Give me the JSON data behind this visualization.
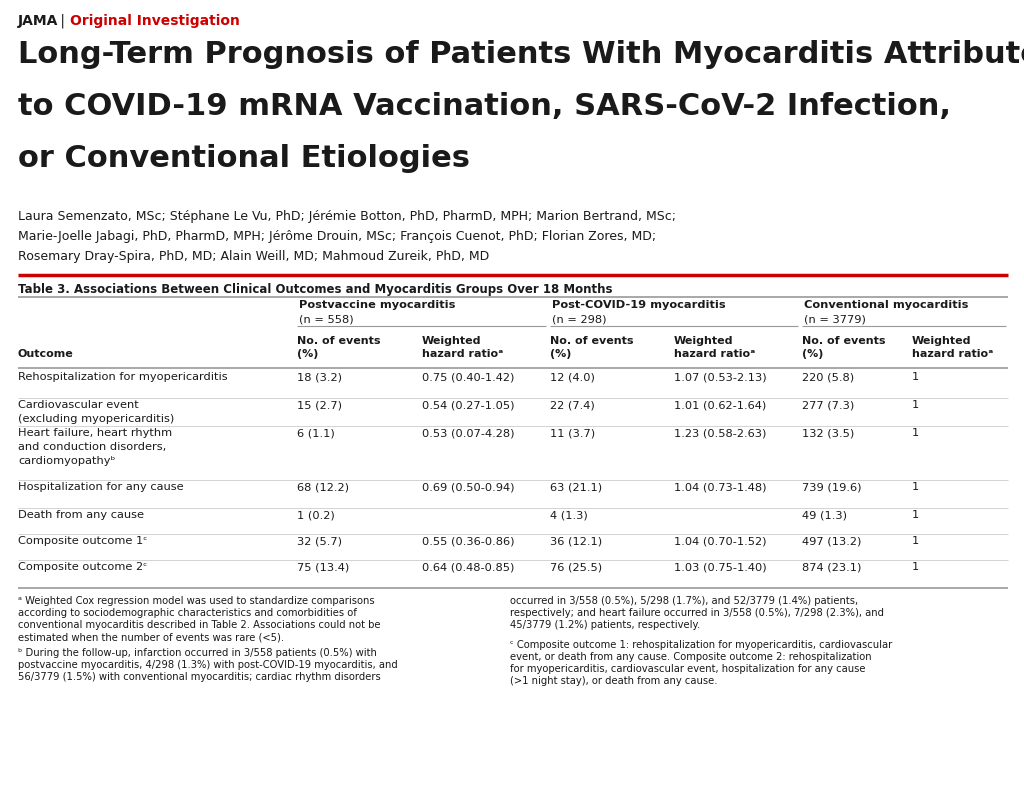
{
  "jama_label": "JAMA",
  "separator": " | ",
  "article_type": "Original Investigation",
  "title_lines": [
    "Long-Term Prognosis of Patients With Myocarditis Attributed",
    "to COVID-19 mRNA Vaccination, SARS-CoV-2 Infection,",
    "or Conventional Etiologies"
  ],
  "author_lines": [
    "Laura Semenzato, MSc; Stéphane Le Vu, PhD; Jérémie Botton, PhD, PharmD, MPH; Marion Bertrand, MSc;",
    "Marie-Joelle Jabagi, PhD, PharmD, MPH; Jérôme Drouin, MSc; François Cuenot, PhD; Florian Zores, MD;",
    "Rosemary Dray-Spira, PhD, MD; Alain Weill, MD; Mahmoud Zureik, PhD, MD"
  ],
  "table_title": "Table 3. Associations Between Clinical Outcomes and Myocarditis Groups Over 18 Months",
  "group_headers": [
    "Postvaccine myocarditis\n(n = 558)",
    "Post-COVID-19 myocarditis\n(n = 298)",
    "Conventional myocarditis\n(n = 3779)"
  ],
  "sub_col_headers": [
    "No. of events\n(%)",
    "Weighted\nhazard ratioᵃ"
  ],
  "outcome_header": "Outcome",
  "rows": [
    {
      "outcome": [
        "Rehospitalization for myopericarditis"
      ],
      "cells": [
        "18 (3.2)",
        "0.75 (0.40-1.42)",
        "12 (4.0)",
        "1.07 (0.53-2.13)",
        "220 (5.8)",
        "1"
      ]
    },
    {
      "outcome": [
        "Cardiovascular event",
        "(excluding myopericarditis)"
      ],
      "cells": [
        "15 (2.7)",
        "0.54 (0.27-1.05)",
        "22 (7.4)",
        "1.01 (0.62-1.64)",
        "277 (7.3)",
        "1"
      ]
    },
    {
      "outcome": [
        "Heart failure, heart rhythm",
        "and conduction disorders,",
        "cardiomyopathyᵇ"
      ],
      "cells": [
        "6 (1.1)",
        "0.53 (0.07-4.28)",
        "11 (3.7)",
        "1.23 (0.58-2.63)",
        "132 (3.5)",
        "1"
      ]
    },
    {
      "outcome": [
        "Hospitalization for any cause"
      ],
      "cells": [
        "68 (12.2)",
        "0.69 (0.50-0.94)",
        "63 (21.1)",
        "1.04 (0.73-1.48)",
        "739 (19.6)",
        "1"
      ]
    },
    {
      "outcome": [
        "Death from any cause"
      ],
      "cells": [
        "1 (0.2)",
        "",
        "4 (1.3)",
        "",
        "49 (1.3)",
        "1"
      ]
    },
    {
      "outcome": [
        "Composite outcome 1ᶜ"
      ],
      "cells": [
        "32 (5.7)",
        "0.55 (0.36-0.86)",
        "36 (12.1)",
        "1.04 (0.70-1.52)",
        "497 (13.2)",
        "1"
      ]
    },
    {
      "outcome": [
        "Composite outcome 2ᶜ"
      ],
      "cells": [
        "75 (13.4)",
        "0.64 (0.48-0.85)",
        "76 (25.5)",
        "1.03 (0.75-1.40)",
        "874 (23.1)",
        "1"
      ]
    }
  ],
  "fn_a_col1": "ᵃ Weighted Cox regression model was used to standardize comparisons\naccording to sociodemographic characteristics and comorbidities of\nconventional myocarditis described in Table 2. Associations could not be\nestimated when the number of events was rare (<5).",
  "fn_b_col1": "ᵇ During the follow-up, infarction occurred in 3/558 patients (0.5%) with\npostvaccine myocarditis, 4/298 (1.3%) with post-COVID-19 myocarditis, and\n56/3779 (1.5%) with conventional myocarditis; cardiac rhythm disorders",
  "fn_b_col2": "occurred in 3/558 (0.5%), 5/298 (1.7%), and 52/3779 (1.4%) patients,\nrespectively; and heart failure occurred in 3/558 (0.5%), 7/298 (2.3%), and\n45/3779 (1.2%) patients, respectively.",
  "fn_c_col2": "ᶜ Composite outcome 1: rehospitalization for myopericarditis, cardiovascular\nevent, or death from any cause. Composite outcome 2: rehospitalization\nfor myopericarditis, cardiovascular event, hospitalization for any cause\n(>1 night stay), or death from any cause.",
  "red": "#cc0000",
  "black": "#1a1a1a",
  "gray_line": "#999999",
  "light_line": "#cccccc",
  "bg": "#ffffff"
}
